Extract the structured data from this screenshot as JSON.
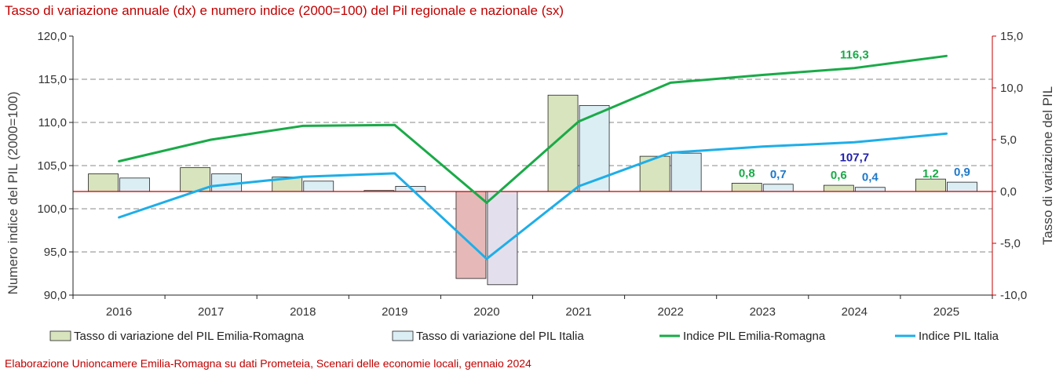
{
  "title": "Tasso di variazione annuale (dx) e numero indice (2000=100) del Pil regionale e nazionale (sx)",
  "footer": "Elaborazione Unioncamere Emilia-Romagna su dati Prometeia, Scenari delle economie locali, gennaio 2024",
  "colors": {
    "title": "#c00000",
    "bar_er": "#d7e4bd",
    "bar_er_negative": "#e6b9b8",
    "bar_it": "#dbeef4",
    "bar_it_negative": "#e4dfec",
    "line_er": "#1aaa48",
    "line_it": "#1eaee8",
    "zero_line": "#c00000",
    "label_er": "#1aaa48",
    "label_it": "#1f78c8",
    "label_index_it": "#1f1fa8"
  },
  "chart_data": {
    "type": "bar",
    "title": "Tasso di variazione annuale (dx) e numero indice (2000=100) del Pil regionale e nazionale (sx)",
    "categories": [
      "2016",
      "2017",
      "2018",
      "2019",
      "2020",
      "2021",
      "2022",
      "2023",
      "2024",
      "2025"
    ],
    "y_left": {
      "label": "Numero indice del PIL (2000=100)",
      "lim": [
        90,
        120
      ],
      "ticks": [
        "90,0",
        "95,0",
        "100,0",
        "105,0",
        "110,0",
        "115,0",
        "120,0"
      ]
    },
    "y_right": {
      "label": "Tasso di variazione del PIL",
      "lim": [
        -10,
        15
      ],
      "ticks": [
        "-10,0",
        "-5,0",
        "0,0",
        "5,0",
        "10,0",
        "15,0"
      ]
    },
    "grid": true,
    "legend_position": "bottom",
    "series": [
      {
        "name": "Tasso di variazione del PIL Emilia-Romagna",
        "type": "bar",
        "axis": "right",
        "values": [
          1.7,
          2.3,
          1.4,
          0.1,
          -8.4,
          9.3,
          3.4,
          0.8,
          0.6,
          1.2
        ]
      },
      {
        "name": "Tasso di variazione del PIL Italia",
        "type": "bar",
        "axis": "right",
        "values": [
          1.3,
          1.7,
          1.0,
          0.5,
          -9.0,
          8.3,
          3.7,
          0.7,
          0.4,
          0.9
        ]
      },
      {
        "name": "Indice PIL Emilia-Romagna",
        "type": "line",
        "axis": "left",
        "values": [
          105.5,
          108.0,
          109.6,
          109.7,
          100.7,
          110.1,
          114.6,
          115.5,
          116.3,
          117.7
        ]
      },
      {
        "name": "Indice PIL Italia",
        "type": "line",
        "axis": "left",
        "values": [
          99.0,
          102.6,
          103.7,
          104.1,
          94.2,
          102.6,
          106.5,
          107.2,
          107.7,
          108.7
        ]
      }
    ],
    "data_labels": [
      {
        "series": 0,
        "index": 7,
        "text": "0,8"
      },
      {
        "series": 1,
        "index": 7,
        "text": "0,7"
      },
      {
        "series": 0,
        "index": 8,
        "text": "0,6"
      },
      {
        "series": 1,
        "index": 8,
        "text": "0,4"
      },
      {
        "series": 0,
        "index": 9,
        "text": "1,2"
      },
      {
        "series": 1,
        "index": 9,
        "text": "0,9"
      },
      {
        "series": 2,
        "index": 8,
        "text": "116,3"
      },
      {
        "series": 3,
        "index": 8,
        "text": "107,7"
      }
    ]
  }
}
